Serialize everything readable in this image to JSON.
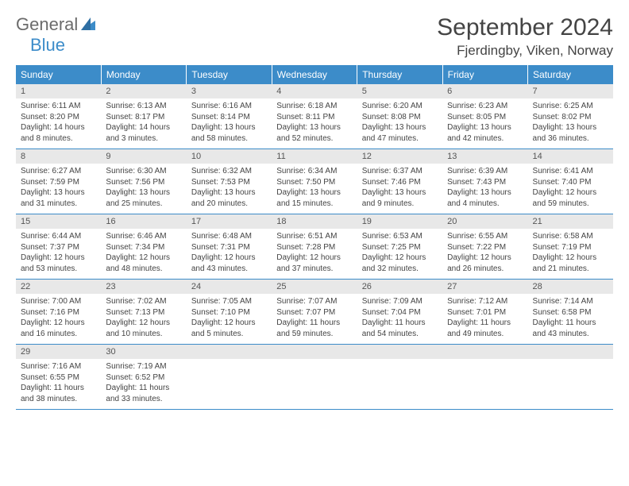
{
  "logo": {
    "text1": "General",
    "text2": "Blue"
  },
  "title": "September 2024",
  "location": "Fjerdingby, Viken, Norway",
  "colors": {
    "header_bg": "#3c8cc9",
    "header_text": "#ffffff",
    "daynum_bg": "#e8e8e8",
    "divider": "#3c8cc9",
    "body_text": "#444444",
    "logo_gray": "#6b6b6b",
    "logo_blue": "#3c8cc9"
  },
  "dow": [
    "Sunday",
    "Monday",
    "Tuesday",
    "Wednesday",
    "Thursday",
    "Friday",
    "Saturday"
  ],
  "weeks": [
    [
      {
        "n": "1",
        "sr": "6:11 AM",
        "ss": "8:20 PM",
        "dl": "14 hours and 8 minutes."
      },
      {
        "n": "2",
        "sr": "6:13 AM",
        "ss": "8:17 PM",
        "dl": "14 hours and 3 minutes."
      },
      {
        "n": "3",
        "sr": "6:16 AM",
        "ss": "8:14 PM",
        "dl": "13 hours and 58 minutes."
      },
      {
        "n": "4",
        "sr": "6:18 AM",
        "ss": "8:11 PM",
        "dl": "13 hours and 52 minutes."
      },
      {
        "n": "5",
        "sr": "6:20 AM",
        "ss": "8:08 PM",
        "dl": "13 hours and 47 minutes."
      },
      {
        "n": "6",
        "sr": "6:23 AM",
        "ss": "8:05 PM",
        "dl": "13 hours and 42 minutes."
      },
      {
        "n": "7",
        "sr": "6:25 AM",
        "ss": "8:02 PM",
        "dl": "13 hours and 36 minutes."
      }
    ],
    [
      {
        "n": "8",
        "sr": "6:27 AM",
        "ss": "7:59 PM",
        "dl": "13 hours and 31 minutes."
      },
      {
        "n": "9",
        "sr": "6:30 AM",
        "ss": "7:56 PM",
        "dl": "13 hours and 25 minutes."
      },
      {
        "n": "10",
        "sr": "6:32 AM",
        "ss": "7:53 PM",
        "dl": "13 hours and 20 minutes."
      },
      {
        "n": "11",
        "sr": "6:34 AM",
        "ss": "7:50 PM",
        "dl": "13 hours and 15 minutes."
      },
      {
        "n": "12",
        "sr": "6:37 AM",
        "ss": "7:46 PM",
        "dl": "13 hours and 9 minutes."
      },
      {
        "n": "13",
        "sr": "6:39 AM",
        "ss": "7:43 PM",
        "dl": "13 hours and 4 minutes."
      },
      {
        "n": "14",
        "sr": "6:41 AM",
        "ss": "7:40 PM",
        "dl": "12 hours and 59 minutes."
      }
    ],
    [
      {
        "n": "15",
        "sr": "6:44 AM",
        "ss": "7:37 PM",
        "dl": "12 hours and 53 minutes."
      },
      {
        "n": "16",
        "sr": "6:46 AM",
        "ss": "7:34 PM",
        "dl": "12 hours and 48 minutes."
      },
      {
        "n": "17",
        "sr": "6:48 AM",
        "ss": "7:31 PM",
        "dl": "12 hours and 43 minutes."
      },
      {
        "n": "18",
        "sr": "6:51 AM",
        "ss": "7:28 PM",
        "dl": "12 hours and 37 minutes."
      },
      {
        "n": "19",
        "sr": "6:53 AM",
        "ss": "7:25 PM",
        "dl": "12 hours and 32 minutes."
      },
      {
        "n": "20",
        "sr": "6:55 AM",
        "ss": "7:22 PM",
        "dl": "12 hours and 26 minutes."
      },
      {
        "n": "21",
        "sr": "6:58 AM",
        "ss": "7:19 PM",
        "dl": "12 hours and 21 minutes."
      }
    ],
    [
      {
        "n": "22",
        "sr": "7:00 AM",
        "ss": "7:16 PM",
        "dl": "12 hours and 16 minutes."
      },
      {
        "n": "23",
        "sr": "7:02 AM",
        "ss": "7:13 PM",
        "dl": "12 hours and 10 minutes."
      },
      {
        "n": "24",
        "sr": "7:05 AM",
        "ss": "7:10 PM",
        "dl": "12 hours and 5 minutes."
      },
      {
        "n": "25",
        "sr": "7:07 AM",
        "ss": "7:07 PM",
        "dl": "11 hours and 59 minutes."
      },
      {
        "n": "26",
        "sr": "7:09 AM",
        "ss": "7:04 PM",
        "dl": "11 hours and 54 minutes."
      },
      {
        "n": "27",
        "sr": "7:12 AM",
        "ss": "7:01 PM",
        "dl": "11 hours and 49 minutes."
      },
      {
        "n": "28",
        "sr": "7:14 AM",
        "ss": "6:58 PM",
        "dl": "11 hours and 43 minutes."
      }
    ],
    [
      {
        "n": "29",
        "sr": "7:16 AM",
        "ss": "6:55 PM",
        "dl": "11 hours and 38 minutes."
      },
      {
        "n": "30",
        "sr": "7:19 AM",
        "ss": "6:52 PM",
        "dl": "11 hours and 33 minutes."
      },
      null,
      null,
      null,
      null,
      null
    ]
  ],
  "labels": {
    "sunrise": "Sunrise:",
    "sunset": "Sunset:",
    "daylight": "Daylight:"
  }
}
